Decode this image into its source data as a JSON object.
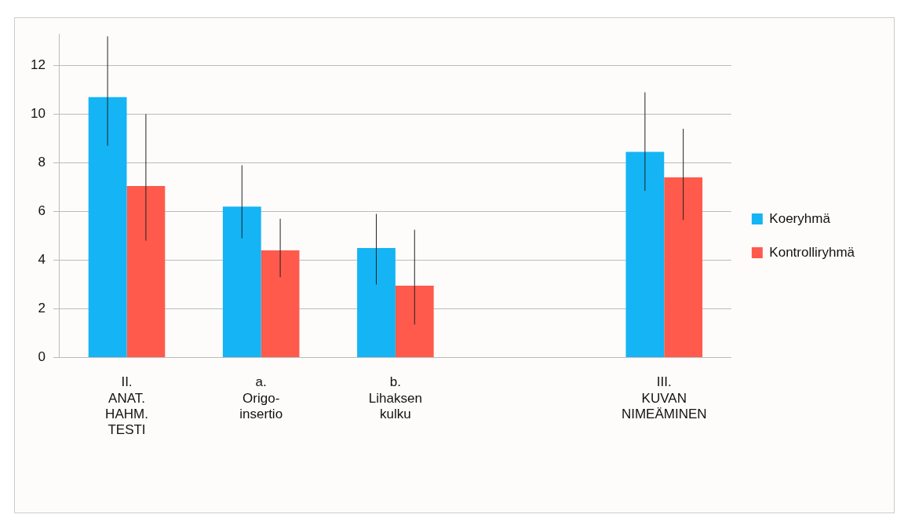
{
  "chart_data": {
    "type": "bar",
    "categories": [
      "II.\nANAT.\nHAHM.\nTESTI",
      "a.\nOrigo-\ninsertio",
      "b.\nLihaksen\nkulku",
      null,
      "III.\nKUVAN\nNIMEÄMINEN"
    ],
    "series": [
      {
        "name": "Koeryhmä",
        "color": "#14b4f5",
        "values": [
          10.7,
          6.2,
          4.5,
          null,
          8.45
        ],
        "errors": [
          [
            8.7,
            13.2
          ],
          [
            4.9,
            7.9
          ],
          [
            3.0,
            5.9
          ],
          null,
          [
            6.85,
            10.9
          ]
        ]
      },
      {
        "name": "Kontrolliryhmä",
        "color": "#ff5a4c",
        "values": [
          7.05,
          4.4,
          2.95,
          null,
          7.4
        ],
        "errors": [
          [
            4.8,
            10.0
          ],
          [
            3.3,
            5.7
          ],
          [
            1.35,
            5.25
          ],
          null,
          [
            5.65,
            9.4
          ]
        ]
      }
    ],
    "ylim": [
      0,
      13.3
    ],
    "yticks": [
      0,
      2,
      4,
      6,
      8,
      10,
      12
    ],
    "grid": "y",
    "legend": "right"
  }
}
